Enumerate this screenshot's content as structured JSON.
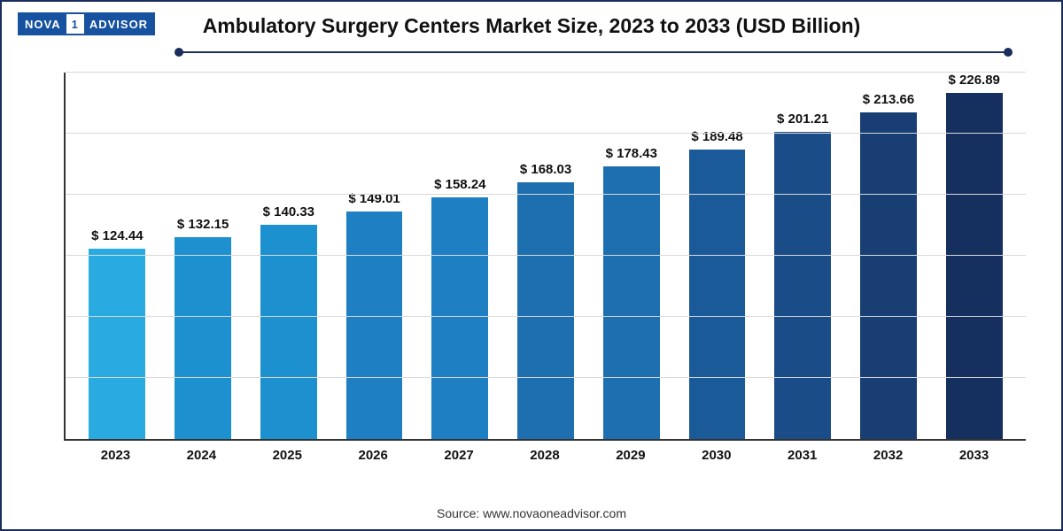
{
  "logo": {
    "left": "NOVA",
    "mid": "1",
    "right": "ADVISOR"
  },
  "title": "Ambulatory Surgery Centers Market Size, 2023 to 2033 (USD Billion)",
  "source": "Source: www.novaoneadvisor.com",
  "chart": {
    "type": "bar",
    "background_color": "#ffffff",
    "border_color": "#1a2d5c",
    "axis_color": "#333333",
    "grid_color": "#d9d9d9",
    "ymax": 240,
    "grid_lines": [
      40,
      80,
      120,
      160,
      200,
      240
    ],
    "bar_width_pct": 66,
    "label_prefix": "$ ",
    "label_fontsize": 15,
    "label_fontweight": "bold",
    "xlabel_fontsize": 15,
    "xlabel_fontweight": "bold",
    "title_fontsize": 23,
    "categories": [
      "2023",
      "2024",
      "2025",
      "2026",
      "2027",
      "2028",
      "2029",
      "2030",
      "2031",
      "2032",
      "2033"
    ],
    "values": [
      124.44,
      132.15,
      140.33,
      149.01,
      158.24,
      168.03,
      178.43,
      189.48,
      201.21,
      213.66,
      226.89
    ],
    "bar_colors": [
      "#29abe2",
      "#1d91d0",
      "#1d91d0",
      "#1e7fc2",
      "#1e7fc2",
      "#1d6fb0",
      "#1d6fb0",
      "#1a5a99",
      "#1a4d88",
      "#183e74",
      "#152f5e"
    ]
  }
}
